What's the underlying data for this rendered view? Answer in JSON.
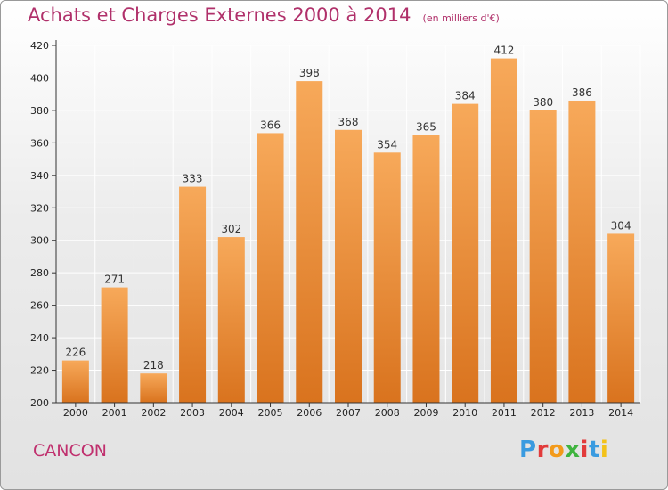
{
  "header": {
    "title": "Achats et Charges Externes 2000 à 2014",
    "subtitle": "(en milliers d'€)"
  },
  "footer": {
    "city": "CANCON",
    "logo_text": "Proxiti",
    "logo_colors": [
      "#3a9be0",
      "#e23b3b",
      "#f39a1a",
      "#3fb43f",
      "#e23b3b",
      "#3a9be0",
      "#f3c21a"
    ]
  },
  "colors": {
    "bar_top": "#f7a95a",
    "bar_bottom": "#d9731e",
    "axis": "#333333",
    "grid": "#ffffff",
    "title": "#b0306a"
  },
  "chart_data": {
    "type": "bar",
    "categories": [
      "2000",
      "2001",
      "2002",
      "2003",
      "2004",
      "2005",
      "2006",
      "2007",
      "2008",
      "2009",
      "2010",
      "2011",
      "2012",
      "2013",
      "2014"
    ],
    "values": [
      226,
      271,
      218,
      333,
      302,
      366,
      398,
      368,
      354,
      365,
      384,
      412,
      380,
      386,
      304
    ],
    "ylim": [
      200,
      420
    ],
    "yticks": [
      200,
      220,
      240,
      260,
      280,
      300,
      320,
      340,
      360,
      380,
      400,
      420
    ],
    "grid": true,
    "data_labels": true
  }
}
